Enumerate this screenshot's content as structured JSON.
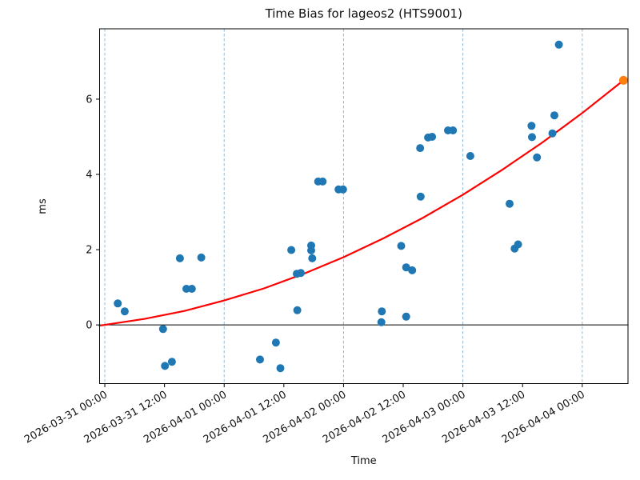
{
  "figure": {
    "background": "#ffffff"
  },
  "chart_data": {
    "type": "scatter",
    "title": "Time Bias for lageos2 (HTS9001)",
    "xlabel": "Time",
    "ylabel": "ms",
    "x_epoch": "2026-03-31 00:00",
    "x_unit": "hours since 2026-03-31 00:00",
    "xlim_hours": [
      -1.05,
      105.2
    ],
    "ylim": [
      -1.56,
      7.87
    ],
    "y_ticks": [
      0,
      2,
      4,
      6
    ],
    "x_ticks": [
      {
        "hours": 0,
        "label": "2026-03-31 00:00"
      },
      {
        "hours": 12,
        "label": "2026-03-31 12:00"
      },
      {
        "hours": 24,
        "label": "2026-04-01 00:00"
      },
      {
        "hours": 36,
        "label": "2026-04-01 12:00"
      },
      {
        "hours": 48,
        "label": "2026-04-02 00:00"
      },
      {
        "hours": 60,
        "label": "2026-04-02 12:00"
      },
      {
        "hours": 72,
        "label": "2026-04-03 00:00"
      },
      {
        "hours": 84,
        "label": "2026-04-03 12:00"
      },
      {
        "hours": 96,
        "label": "2026-04-04 00:00"
      }
    ],
    "x_gridlines_hours": [
      0,
      24,
      48,
      72,
      96
    ],
    "grid_color": "#8fbbd9",
    "zero_line_color": "#000000",
    "spine_color": "#000000",
    "series": [
      {
        "name": "time-bias-observations",
        "color": "#1f77b4",
        "marker_radius": 5,
        "points": [
          [
            2.6,
            0.57
          ],
          [
            4.0,
            0.36
          ],
          [
            11.7,
            -0.11
          ],
          [
            12.1,
            -1.09
          ],
          [
            13.5,
            -0.98
          ],
          [
            15.1,
            1.77
          ],
          [
            16.4,
            0.96
          ],
          [
            17.5,
            0.96
          ],
          [
            19.4,
            1.79
          ],
          [
            31.2,
            -0.92
          ],
          [
            34.4,
            -0.47
          ],
          [
            35.3,
            -1.15
          ],
          [
            37.5,
            1.99
          ],
          [
            38.6,
            1.36
          ],
          [
            38.7,
            0.39
          ],
          [
            39.4,
            1.38
          ],
          [
            41.5,
            2.11
          ],
          [
            41.5,
            1.98
          ],
          [
            41.7,
            1.77
          ],
          [
            42.9,
            3.81
          ],
          [
            43.8,
            3.81
          ],
          [
            47.0,
            3.6
          ],
          [
            47.9,
            3.6
          ],
          [
            55.6,
            0.07
          ],
          [
            55.7,
            0.36
          ],
          [
            59.6,
            2.1
          ],
          [
            60.6,
            0.22
          ],
          [
            60.6,
            1.53
          ],
          [
            61.8,
            1.45
          ],
          [
            63.4,
            4.7
          ],
          [
            63.5,
            3.41
          ],
          [
            65.0,
            4.98
          ],
          [
            65.8,
            5.0
          ],
          [
            69.0,
            5.17
          ],
          [
            70.0,
            5.17
          ],
          [
            73.5,
            4.49
          ],
          [
            81.4,
            3.22
          ],
          [
            82.4,
            2.03
          ],
          [
            83.1,
            2.14
          ],
          [
            85.8,
            5.29
          ],
          [
            85.9,
            4.99
          ],
          [
            86.9,
            4.45
          ],
          [
            90.0,
            5.09
          ],
          [
            90.4,
            5.57
          ],
          [
            91.3,
            7.45
          ]
        ]
      },
      {
        "name": "predicted-endpoint",
        "color": "#ff7f0e",
        "marker_radius": 5.5,
        "points": [
          [
            104.3,
            6.5
          ]
        ]
      }
    ],
    "fit_curve": {
      "name": "fit-curve",
      "color": "#ff0000",
      "points": [
        [
          -1.05,
          -0.02
        ],
        [
          0,
          0.0
        ],
        [
          8,
          0.16
        ],
        [
          16,
          0.37
        ],
        [
          24,
          0.65
        ],
        [
          32,
          0.97
        ],
        [
          40,
          1.36
        ],
        [
          48,
          1.8
        ],
        [
          56,
          2.3
        ],
        [
          64,
          2.85
        ],
        [
          72,
          3.46
        ],
        [
          80,
          4.13
        ],
        [
          88,
          4.85
        ],
        [
          96,
          5.63
        ],
        [
          104.3,
          6.5
        ]
      ]
    }
  }
}
